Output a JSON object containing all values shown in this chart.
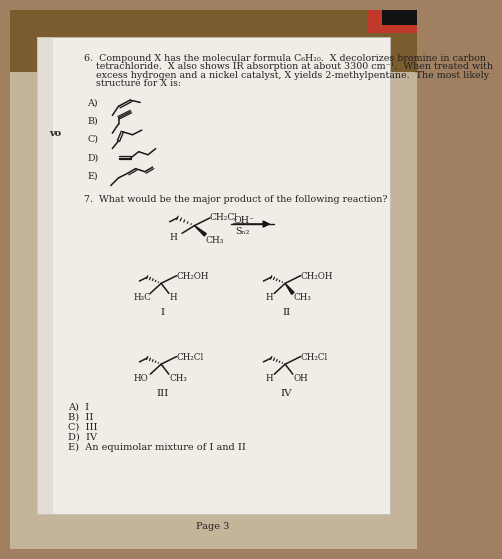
{
  "bg_top_color": "#8B6914",
  "bg_bottom_color": "#c8b89a",
  "paper_color": "#eeeae3",
  "text_color": "#2a2a2a",
  "title": "Page 3",
  "q6_lines": [
    "6.  Compound X has the molecular formula C₆H₁₀.  X decolorizes bromine in carbon",
    "    tetrachloride.  X also shows IR absorption at about 3300 cm⁻¹.  When treated with",
    "    excess hydrogen and a nickel catalyst, X yields 2-methylpentane.  The most likely",
    "    structure for X is:"
  ],
  "q7_line": "7.  What would be the major product of the following reaction?",
  "answers": [
    "A)  I",
    "B)  II",
    "C)  III",
    "D)  IV",
    "E)  An equimolar mixture of I and II"
  ],
  "page_num": "Page 3"
}
